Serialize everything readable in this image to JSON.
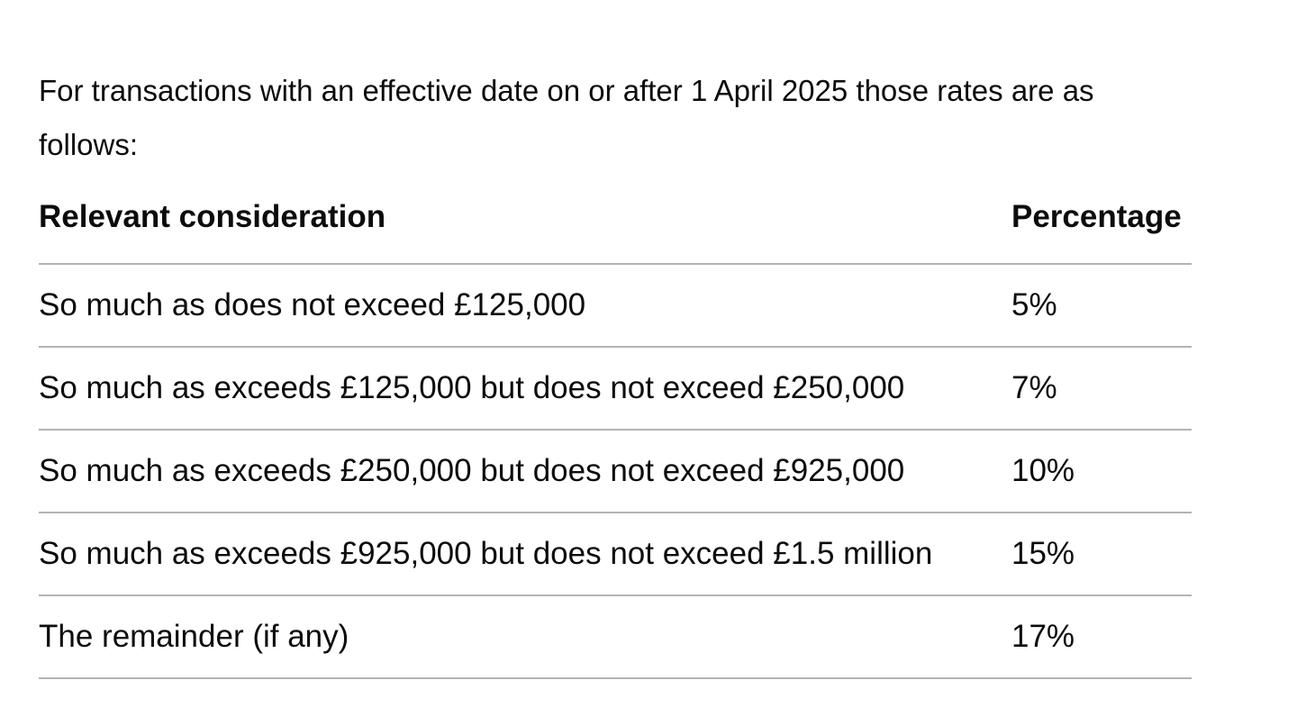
{
  "page": {
    "background": "#ffffff",
    "text_color": "#0b0c0c",
    "rule_color": "#b1b4b6"
  },
  "intro": {
    "text": "For transactions with an effective date on or after 1 April 2025 those rates are as\nfollows:"
  },
  "table": {
    "headers": {
      "consideration": "Relevant consideration",
      "percentage": "Percentage"
    },
    "rows": [
      {
        "consideration": "So much as does not exceed £125,000",
        "percentage": "5%"
      },
      {
        "consideration": "So much as exceeds £125,000 but does not exceed £250,000",
        "percentage": "7%"
      },
      {
        "consideration": "So much as exceeds £250,000 but does not exceed £925,000",
        "percentage": "10%"
      },
      {
        "consideration": "So much as exceeds £925,000 but does not exceed £1.5 million",
        "percentage": "15%"
      },
      {
        "consideration": "The remainder (if any)",
        "percentage": "17%"
      }
    ]
  }
}
